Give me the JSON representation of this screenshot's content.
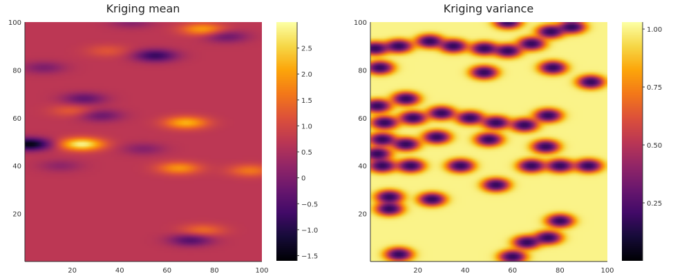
{
  "chart_data": [
    {
      "type": "heatmap",
      "title": "Kriging mean",
      "xlim": [
        0,
        100
      ],
      "ylim": [
        0,
        100
      ],
      "xticks": [
        "20",
        "40",
        "60",
        "80",
        "100"
      ],
      "yticks": [
        "20",
        "40",
        "60",
        "80",
        "100"
      ],
      "colorbar": {
        "min": -1.6,
        "max": 3.0,
        "ticks": [
          "-1.5",
          "-1.0",
          "-0.5",
          "0",
          "0.5",
          "1.0",
          "1.5",
          "2.0",
          "2.5"
        ]
      },
      "colormap": "inferno",
      "background_value": 0.7,
      "features": [
        {
          "x": 2,
          "y": 49,
          "value": -1.5
        },
        {
          "x": 24,
          "y": 49,
          "value": 2.9
        },
        {
          "x": 68,
          "y": 58,
          "value": 2.2
        },
        {
          "x": 65,
          "y": 39,
          "value": 1.9
        },
        {
          "x": 75,
          "y": 97,
          "value": 2.0
        },
        {
          "x": 55,
          "y": 86,
          "value": -0.8
        },
        {
          "x": 25,
          "y": 68,
          "value": -0.3
        },
        {
          "x": 32,
          "y": 61,
          "value": -0.2
        },
        {
          "x": 8,
          "y": 81,
          "value": 0.0
        },
        {
          "x": 70,
          "y": 9,
          "value": -0.5
        },
        {
          "x": 75,
          "y": 13,
          "value": 1.5
        },
        {
          "x": 95,
          "y": 38,
          "value": 1.6
        },
        {
          "x": 45,
          "y": 100,
          "value": 0.1
        },
        {
          "x": 85,
          "y": 94,
          "value": -0.2
        },
        {
          "x": 15,
          "y": 40,
          "value": 0.2
        },
        {
          "x": 50,
          "y": 47,
          "value": 0.1
        },
        {
          "x": 20,
          "y": 63,
          "value": 1.3
        },
        {
          "x": 35,
          "y": 88,
          "value": 1.2
        }
      ]
    },
    {
      "type": "heatmap",
      "title": "Kriging variance",
      "xlim": [
        0,
        100
      ],
      "ylim": [
        0,
        100
      ],
      "xticks": [
        "20",
        "40",
        "60",
        "80",
        "100"
      ],
      "yticks": [
        "20",
        "40",
        "60",
        "80",
        "100"
      ],
      "colorbar": {
        "min": 0.0,
        "max": 1.03,
        "ticks": [
          "0.25",
          "0.50",
          "0.75",
          "1.00"
        ]
      },
      "colormap": "inferno",
      "background_value": 1.0,
      "features": [
        {
          "x": 2,
          "y": 89,
          "value": 0.0
        },
        {
          "x": 12,
          "y": 90,
          "value": 0.0
        },
        {
          "x": 25,
          "y": 92,
          "value": 0.0
        },
        {
          "x": 35,
          "y": 90,
          "value": 0.0
        },
        {
          "x": 48,
          "y": 89,
          "value": 0.0
        },
        {
          "x": 58,
          "y": 88,
          "value": 0.0
        },
        {
          "x": 68,
          "y": 91,
          "value": 0.0
        },
        {
          "x": 76,
          "y": 96,
          "value": 0.0
        },
        {
          "x": 85,
          "y": 98,
          "value": 0.0
        },
        {
          "x": 58,
          "y": 100,
          "value": 0.0
        },
        {
          "x": 4,
          "y": 81,
          "value": 0.0
        },
        {
          "x": 48,
          "y": 79,
          "value": 0.0
        },
        {
          "x": 77,
          "y": 81,
          "value": 0.0
        },
        {
          "x": 93,
          "y": 75,
          "value": 0.0
        },
        {
          "x": 15,
          "y": 68,
          "value": 0.0
        },
        {
          "x": 3,
          "y": 65,
          "value": 0.0
        },
        {
          "x": 6,
          "y": 58,
          "value": 0.0
        },
        {
          "x": 18,
          "y": 60,
          "value": 0.0
        },
        {
          "x": 30,
          "y": 62,
          "value": 0.0
        },
        {
          "x": 42,
          "y": 60,
          "value": 0.0
        },
        {
          "x": 53,
          "y": 58,
          "value": 0.0
        },
        {
          "x": 65,
          "y": 57,
          "value": 0.0
        },
        {
          "x": 75,
          "y": 61,
          "value": 0.0
        },
        {
          "x": 5,
          "y": 51,
          "value": 0.0
        },
        {
          "x": 15,
          "y": 49,
          "value": 0.0
        },
        {
          "x": 28,
          "y": 52,
          "value": 0.0
        },
        {
          "x": 50,
          "y": 51,
          "value": 0.0
        },
        {
          "x": 74,
          "y": 48,
          "value": 0.0
        },
        {
          "x": 3,
          "y": 45,
          "value": 0.0
        },
        {
          "x": 5,
          "y": 40,
          "value": 0.0
        },
        {
          "x": 17,
          "y": 40,
          "value": 0.0
        },
        {
          "x": 38,
          "y": 40,
          "value": 0.0
        },
        {
          "x": 68,
          "y": 40,
          "value": 0.0
        },
        {
          "x": 80,
          "y": 40,
          "value": 0.0
        },
        {
          "x": 92,
          "y": 40,
          "value": 0.0
        },
        {
          "x": 53,
          "y": 32,
          "value": 0.0
        },
        {
          "x": 8,
          "y": 27,
          "value": 0.0
        },
        {
          "x": 26,
          "y": 26,
          "value": 0.0
        },
        {
          "x": 8,
          "y": 22,
          "value": 0.0
        },
        {
          "x": 80,
          "y": 17,
          "value": 0.0
        },
        {
          "x": 75,
          "y": 10,
          "value": 0.0
        },
        {
          "x": 66,
          "y": 8,
          "value": 0.0
        },
        {
          "x": 12,
          "y": 3,
          "value": 0.0
        },
        {
          "x": 60,
          "y": 2,
          "value": 0.0
        }
      ]
    }
  ]
}
